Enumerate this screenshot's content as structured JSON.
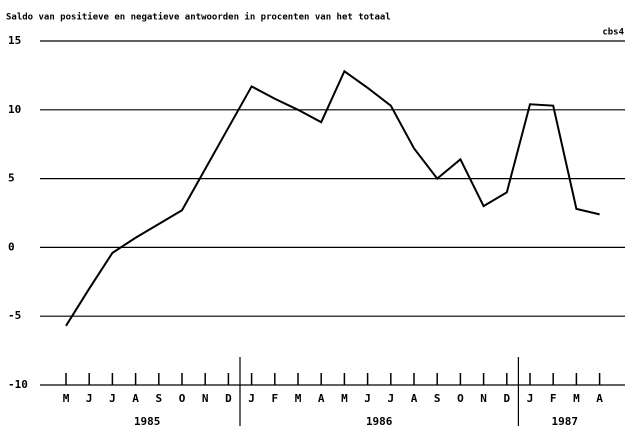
{
  "chart_data": {
    "type": "line",
    "title": "Saldo van positieve en negatieve antwoorden in procenten van het totaal",
    "source": "cbs4",
    "categories": [
      "M",
      "J",
      "J",
      "A",
      "S",
      "O",
      "N",
      "D",
      "J",
      "F",
      "M",
      "A",
      "M",
      "J",
      "J",
      "A",
      "S",
      "O",
      "N",
      "D",
      "J",
      "F",
      "M",
      "A"
    ],
    "years": [
      "1985",
      "1986",
      "1987"
    ],
    "series": [
      {
        "color": "#000000",
        "values": [
          -5.7,
          -3.0,
          -0.4,
          0.7,
          1.7,
          2.7,
          5.7,
          8.7,
          11.7,
          10.8,
          10.0,
          9.1,
          12.8,
          11.6,
          10.3,
          7.2,
          5.0,
          6.4,
          3.0,
          4.0,
          10.4,
          10.3,
          2.8,
          2.4
        ]
      }
    ],
    "ylim": [
      -10,
      15
    ],
    "yticks": [
      -10,
      -5,
      0,
      5,
      10,
      15
    ],
    "grid": true
  }
}
